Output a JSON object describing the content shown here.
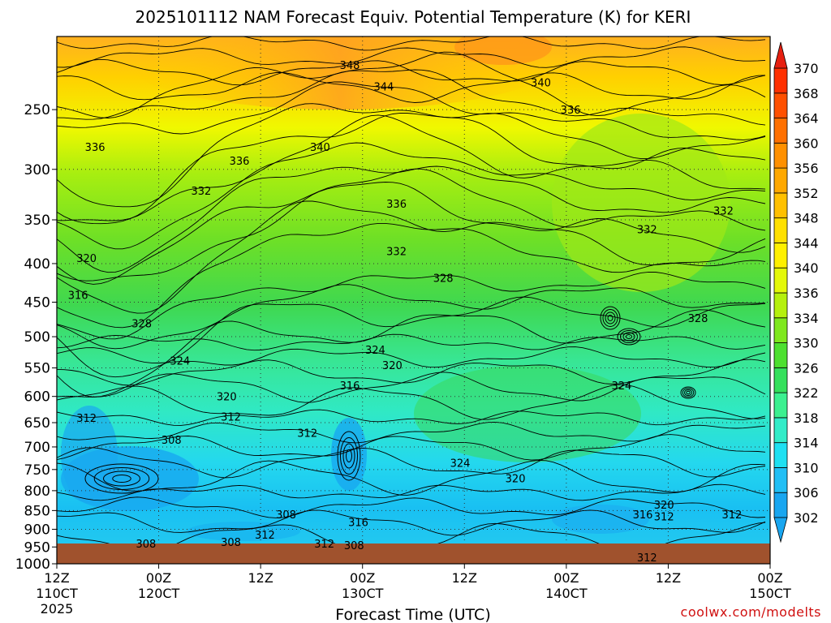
{
  "chart_data": {
    "type": "heatmap",
    "title": "2025101112 NAM Forecast Equiv. Potential Temperature (K) for KERI",
    "xlabel": "Forecast Time (UTC)",
    "ylabel": "",
    "x_ticks": [
      {
        "hour": 0,
        "label": "12Z",
        "sublabel": "110CT",
        "year": "2025"
      },
      {
        "hour": 12,
        "label": "00Z",
        "sublabel": "120CT"
      },
      {
        "hour": 24,
        "label": "12Z",
        "sublabel": ""
      },
      {
        "hour": 36,
        "label": "00Z",
        "sublabel": "130CT"
      },
      {
        "hour": 48,
        "label": "12Z",
        "sublabel": ""
      },
      {
        "hour": 60,
        "label": "00Z",
        "sublabel": "140CT"
      },
      {
        "hour": 72,
        "label": "12Z",
        "sublabel": ""
      },
      {
        "hour": 84,
        "label": "00Z",
        "sublabel": "150CT"
      }
    ],
    "xlim": [
      0,
      84
    ],
    "y_ticks": [
      250,
      300,
      350,
      400,
      450,
      500,
      550,
      600,
      650,
      700,
      750,
      800,
      850,
      900,
      950,
      1000
    ],
    "ylim": [
      200,
      1000
    ],
    "y_scale": "log-pressure",
    "grid": true,
    "colorbar": {
      "labels": [
        "302",
        "306",
        "310",
        "314",
        "318",
        "322",
        "326",
        "330",
        "334",
        "336",
        "340",
        "344",
        "348",
        "352",
        "356",
        "360",
        "364",
        "368",
        "370"
      ],
      "colors": [
        "#19a6f0",
        "#22bff5",
        "#1fe0f2",
        "#32ecc8",
        "#3cf090",
        "#35e05c",
        "#4de030",
        "#7fe81e",
        "#b5f00e",
        "#e4f80a",
        "#fff000",
        "#ffe000",
        "#ffc000",
        "#ffa800",
        "#ff9000",
        "#ff7000",
        "#ff5000",
        "#ff3000",
        "#e61f10"
      ]
    },
    "contour_labels": [
      {
        "hour": 34.5,
        "p": 218,
        "text": "348"
      },
      {
        "hour": 38.5,
        "p": 233,
        "text": "344"
      },
      {
        "hour": 57,
        "p": 230,
        "text": "340"
      },
      {
        "hour": 60.5,
        "p": 250,
        "text": "336"
      },
      {
        "hour": 4.5,
        "p": 280,
        "text": "336"
      },
      {
        "hour": 31,
        "p": 280,
        "text": "340"
      },
      {
        "hour": 21.5,
        "p": 292,
        "text": "336"
      },
      {
        "hour": 17,
        "p": 320,
        "text": "332"
      },
      {
        "hour": 40,
        "p": 333,
        "text": "336"
      },
      {
        "hour": 78.5,
        "p": 340,
        "text": "332"
      },
      {
        "hour": 69.5,
        "p": 360,
        "text": "332"
      },
      {
        "hour": 40,
        "p": 385,
        "text": "332"
      },
      {
        "hour": 45.5,
        "p": 418,
        "text": "328"
      },
      {
        "hour": 3.5,
        "p": 393,
        "text": "320"
      },
      {
        "hour": 2.5,
        "p": 440,
        "text": "316"
      },
      {
        "hour": 10,
        "p": 480,
        "text": "328"
      },
      {
        "hour": 75.5,
        "p": 472,
        "text": "328"
      },
      {
        "hour": 37.5,
        "p": 520,
        "text": "324"
      },
      {
        "hour": 14.5,
        "p": 538,
        "text": "324"
      },
      {
        "hour": 39.5,
        "p": 545,
        "text": "320"
      },
      {
        "hour": 34.5,
        "p": 580,
        "text": "316"
      },
      {
        "hour": 20,
        "p": 600,
        "text": "320"
      },
      {
        "hour": 66.5,
        "p": 580,
        "text": "324"
      },
      {
        "hour": 3.5,
        "p": 640,
        "text": "312"
      },
      {
        "hour": 20.5,
        "p": 638,
        "text": "312"
      },
      {
        "hour": 13.5,
        "p": 685,
        "text": "308"
      },
      {
        "hour": 29.5,
        "p": 670,
        "text": "312"
      },
      {
        "hour": 47.5,
        "p": 735,
        "text": "324"
      },
      {
        "hour": 54,
        "p": 770,
        "text": "320"
      },
      {
        "hour": 71.5,
        "p": 835,
        "text": "320"
      },
      {
        "hour": 69,
        "p": 860,
        "text": "316"
      },
      {
        "hour": 71.5,
        "p": 865,
        "text": "312"
      },
      {
        "hour": 79.5,
        "p": 860,
        "text": "312"
      },
      {
        "hour": 27,
        "p": 860,
        "text": "308"
      },
      {
        "hour": 35.5,
        "p": 880,
        "text": "316"
      },
      {
        "hour": 24.5,
        "p": 915,
        "text": "312"
      },
      {
        "hour": 20.5,
        "p": 935,
        "text": "308"
      },
      {
        "hour": 10.5,
        "p": 940,
        "text": "308"
      },
      {
        "hour": 31.5,
        "p": 940,
        "text": "312"
      },
      {
        "hour": 35,
        "p": 945,
        "text": "308"
      },
      {
        "hour": 69.5,
        "p": 980,
        "text": "312"
      }
    ]
  },
  "credit": "coolwx.com/modelts"
}
